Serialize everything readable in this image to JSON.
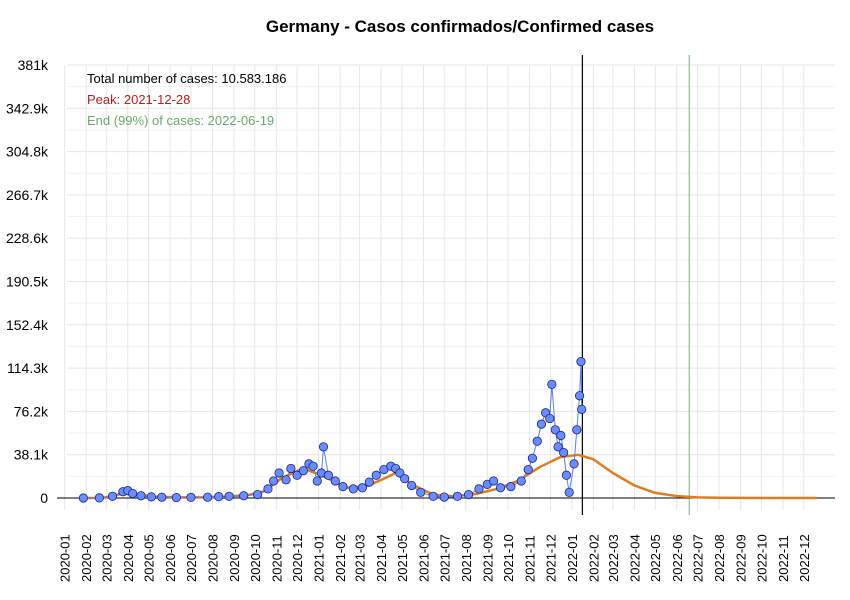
{
  "chart_data": {
    "type": "scatter",
    "title": "Germany - Casos confirmados/Confirmed cases",
    "xlabel": "",
    "ylabel": "",
    "ylim": [
      0,
      381000
    ],
    "y_ticks": [
      "0",
      "38.1k",
      "76.2k",
      "114.3k",
      "152.4k",
      "190.5k",
      "228.6k",
      "266.7k",
      "304.8k",
      "342.9k",
      "381k"
    ],
    "x_ticks": [
      "2020-01",
      "2020-02",
      "2020-03",
      "2020-04",
      "2020-05",
      "2020-06",
      "2020-07",
      "2020-08",
      "2020-09",
      "2020-10",
      "2020-11",
      "2020-12",
      "2021-01",
      "2021-02",
      "2021-03",
      "2021-04",
      "2021-05",
      "2021-06",
      "2021-07",
      "2021-08",
      "2021-09",
      "2021-10",
      "2021-11",
      "2021-12",
      "2022-01",
      "2022-02",
      "2022-03",
      "2022-04",
      "2022-05",
      "2022-06",
      "2022-07",
      "2022-08",
      "2022-09",
      "2022-10",
      "2022-11",
      "2022-12"
    ],
    "grid": true,
    "annotations": [
      {
        "text": "Total number of cases: 10.583.186",
        "color": "#000000"
      },
      {
        "text": "Peak: 2021-12-28",
        "color": "#b22222"
      },
      {
        "text": "End (99%) of cases: 2022-06-19",
        "color": "#6aa96a"
      }
    ],
    "vlines": [
      {
        "x": "2022-01-16",
        "color": "#000000"
      },
      {
        "x": "2022-06-19",
        "color": "#8fbc8f"
      }
    ],
    "series": [
      {
        "type": "scatter",
        "color": "#6b8cff",
        "points": [
          [
            "2020-01-28",
            0
          ],
          [
            "2020-02-20",
            100
          ],
          [
            "2020-03-10",
            1500
          ],
          [
            "2020-03-25",
            5500
          ],
          [
            "2020-04-01",
            6500
          ],
          [
            "2020-04-08",
            4000
          ],
          [
            "2020-04-20",
            2000
          ],
          [
            "2020-05-05",
            1000
          ],
          [
            "2020-05-20",
            700
          ],
          [
            "2020-06-10",
            400
          ],
          [
            "2020-07-01",
            500
          ],
          [
            "2020-07-25",
            700
          ],
          [
            "2020-08-10",
            1200
          ],
          [
            "2020-08-25",
            1500
          ],
          [
            "2020-09-15",
            2000
          ],
          [
            "2020-10-05",
            3000
          ],
          [
            "2020-10-20",
            8000
          ],
          [
            "2020-10-28",
            15000
          ],
          [
            "2020-11-05",
            22000
          ],
          [
            "2020-11-15",
            16000
          ],
          [
            "2020-11-22",
            26000
          ],
          [
            "2020-12-01",
            20000
          ],
          [
            "2020-12-10",
            24000
          ],
          [
            "2020-12-18",
            30000
          ],
          [
            "2020-12-24",
            28000
          ],
          [
            "2020-12-30",
            15000
          ],
          [
            "2021-01-05",
            22000
          ],
          [
            "2021-01-08",
            45000
          ],
          [
            "2021-01-15",
            20000
          ],
          [
            "2021-01-25",
            15000
          ],
          [
            "2021-02-05",
            10000
          ],
          [
            "2021-02-20",
            8000
          ],
          [
            "2021-03-05",
            9000
          ],
          [
            "2021-03-15",
            14000
          ],
          [
            "2021-03-25",
            20000
          ],
          [
            "2021-04-05",
            25000
          ],
          [
            "2021-04-15",
            28000
          ],
          [
            "2021-04-22",
            26000
          ],
          [
            "2021-04-28",
            22000
          ],
          [
            "2021-05-05",
            17000
          ],
          [
            "2021-05-15",
            11000
          ],
          [
            "2021-05-28",
            5000
          ],
          [
            "2021-06-15",
            1500
          ],
          [
            "2021-07-01",
            800
          ],
          [
            "2021-07-20",
            1500
          ],
          [
            "2021-08-05",
            3000
          ],
          [
            "2021-08-20",
            8000
          ],
          [
            "2021-09-01",
            12000
          ],
          [
            "2021-09-10",
            15000
          ],
          [
            "2021-09-20",
            9000
          ],
          [
            "2021-10-05",
            10000
          ],
          [
            "2021-10-20",
            15000
          ],
          [
            "2021-10-30",
            25000
          ],
          [
            "2021-11-05",
            35000
          ],
          [
            "2021-11-12",
            50000
          ],
          [
            "2021-11-18",
            65000
          ],
          [
            "2021-11-24",
            75000
          ],
          [
            "2021-11-30",
            70000
          ],
          [
            "2021-12-03",
            100000
          ],
          [
            "2021-12-08",
            60000
          ],
          [
            "2021-12-12",
            45000
          ],
          [
            "2021-12-16",
            55000
          ],
          [
            "2021-12-20",
            40000
          ],
          [
            "2021-12-24",
            20000
          ],
          [
            "2021-12-28",
            5000
          ],
          [
            "2022-01-04",
            30000
          ],
          [
            "2022-01-08",
            60000
          ],
          [
            "2022-01-12",
            90000
          ],
          [
            "2022-01-14",
            120000
          ],
          [
            "2022-01-15",
            78000
          ]
        ]
      },
      {
        "type": "line",
        "color": "#e07b1f",
        "points": [
          [
            "2020-01-28",
            0
          ],
          [
            "2020-02-25",
            100
          ],
          [
            "2020-03-15",
            2500
          ],
          [
            "2020-04-01",
            5000
          ],
          [
            "2020-04-15",
            3000
          ],
          [
            "2020-05-10",
            1200
          ],
          [
            "2020-06-15",
            500
          ],
          [
            "2020-07-20",
            600
          ],
          [
            "2020-08-20",
            1200
          ],
          [
            "2020-09-20",
            2500
          ],
          [
            "2020-10-15",
            6000
          ],
          [
            "2020-11-10",
            18000
          ],
          [
            "2020-12-10",
            26000
          ],
          [
            "2021-01-05",
            20000
          ],
          [
            "2021-02-10",
            9000
          ],
          [
            "2021-03-10",
            10000
          ],
          [
            "2021-04-05",
            17000
          ],
          [
            "2021-04-22",
            22000
          ],
          [
            "2021-05-15",
            12000
          ],
          [
            "2021-06-15",
            3000
          ],
          [
            "2021-07-15",
            1500
          ],
          [
            "2021-08-15",
            3500
          ],
          [
            "2021-09-15",
            8000
          ],
          [
            "2021-10-15",
            15000
          ],
          [
            "2021-11-15",
            27000
          ],
          [
            "2021-12-15",
            36000
          ],
          [
            "2022-01-10",
            38000
          ],
          [
            "2022-02-01",
            34000
          ],
          [
            "2022-03-01",
            22000
          ],
          [
            "2022-04-01",
            11000
          ],
          [
            "2022-05-01",
            4500
          ],
          [
            "2022-06-01",
            1700
          ],
          [
            "2022-07-01",
            600
          ],
          [
            "2022-08-01",
            200
          ],
          [
            "2022-09-01",
            80
          ],
          [
            "2022-10-01",
            30
          ],
          [
            "2022-11-01",
            10
          ],
          [
            "2022-12-20",
            0
          ]
        ]
      }
    ]
  }
}
